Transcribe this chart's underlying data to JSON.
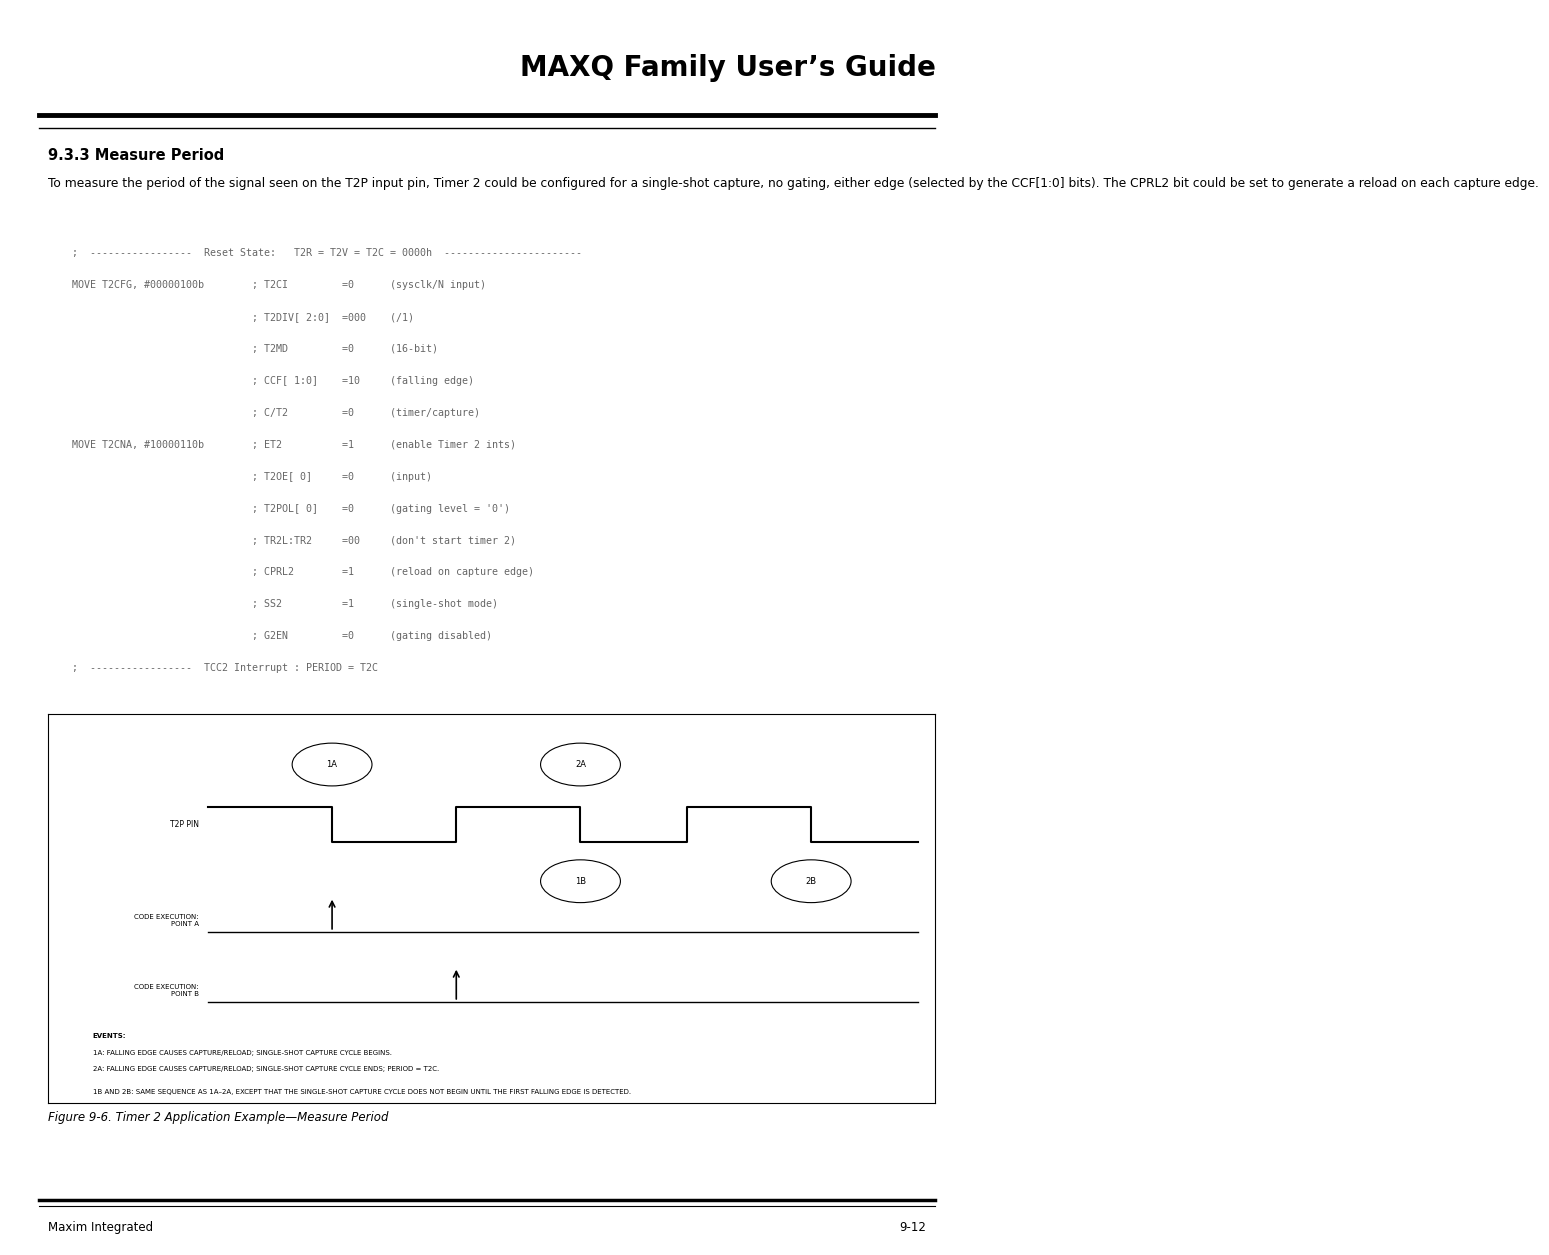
{
  "title": "MAXQ Family User’s Guide",
  "section_title": "9.3.3 Measure Period",
  "section_text": "To measure the period of the signal seen on the T2P input pin, Timer 2 could be configured for a single-shot capture, no gating, either edge (selected by the CCF[1:0] bits). The CPRL2 bit could be set to generate a reload on each capture edge.",
  "code_lines": [
    "    ;  -----------------  Reset State:   T2R = T2V = T2C = 0000h  -----------------------",
    "    MOVE T2CFG, #00000100b        ; T2CI         =0      (sysclk/N input)",
    "                                  ; T2DIV[ 2:0]  =000    (/1)",
    "                                  ; T2MD         =0      (16-bit)",
    "                                  ; CCF[ 1:0]    =10     (falling edge)",
    "                                  ; C/T2         =0      (timer/capture)",
    "    MOVE T2CNA, #10000110b        ; ET2          =1      (enable Timer 2 ints)",
    "                                  ; T2OE[ 0]     =0      (input)",
    "                                  ; T2POL[ 0]    =0      (gating level = '0')",
    "                                  ; TR2L:TR2     =00     (don't start timer 2)",
    "                                  ; CPRL2        =1      (reload on capture edge)",
    "                                  ; SS2          =1      (single-shot mode)",
    "                                  ; G2EN         =0      (gating disabled)",
    "    ;  -----------------  TCC2 Interrupt : PERIOD = T2C"
  ],
  "fig_caption": "Figure 9-6. Timer 2 Application Example—Measure Period",
  "footer_left": "Maxim Integrated",
  "footer_right": "9-12",
  "bg_color": "#ffffff",
  "diagram": {
    "t2p_label": "T2P PIN",
    "code_a_label": "CODE EXECUTION:\nPOINT A",
    "code_b_label": "CODE EXECUTION:\nPOINT B",
    "events_line0": "EVENTS:",
    "events_line1": "1A: FALLING EDGE CAUSES CAPTURE/RELOAD; SINGLE-SHOT CAPTURE CYCLE BEGINS.",
    "events_line2": "2A: FALLING EDGE CAUSES CAPTURE/RELOAD; SINGLE-SHOT CAPTURE CYCLE ENDS; PERIOD = T2C.",
    "events_line3": "1B AND 2B: SAME SEQUENCE AS 1A–2A, EXCEPT THAT THE SINGLE-SHOT CAPTURE CYCLE DOES NOT BEGIN UNTIL THE FIRST FALLING EDGE IS DETECTED.",
    "circle_labels": [
      "1A",
      "2A",
      "1B",
      "2B"
    ]
  }
}
